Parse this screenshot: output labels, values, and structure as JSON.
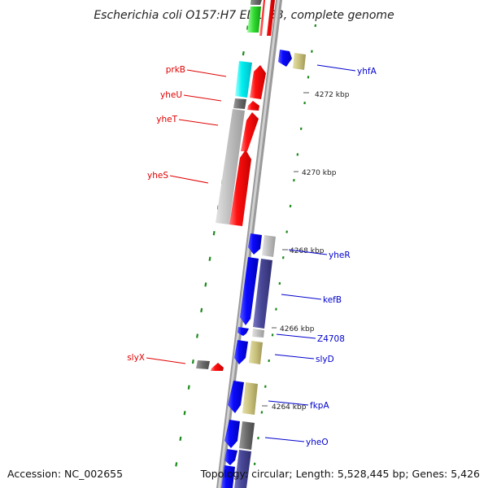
{
  "title": "Escherichia coli O157:H7 EDL933, complete genome",
  "footer": {
    "accession": "Accession: NC_002655",
    "topology": "Topology: circular; Length: 5,528,445 bp; Genes: 5,426"
  },
  "ticks": [
    "4272 kbp",
    "4270 kbp",
    "4268 kbp",
    "4266 kbp",
    "4264 kbp"
  ],
  "genes_left": [
    "prkB",
    "yheU",
    "yheT",
    "yheS",
    "slyX"
  ],
  "genes_right": [
    "yhfA",
    "yheR",
    "kefB",
    "Z4708",
    "slyD",
    "fkpA",
    "yheO"
  ],
  "colors": {
    "red_label": "#e00000",
    "blue_label": "#0000cc",
    "backbone": "#9a9a9a",
    "forward_gene": "#ff0000",
    "reverse_gene": "#0000ff",
    "tick_green": "#1a8a1a"
  }
}
